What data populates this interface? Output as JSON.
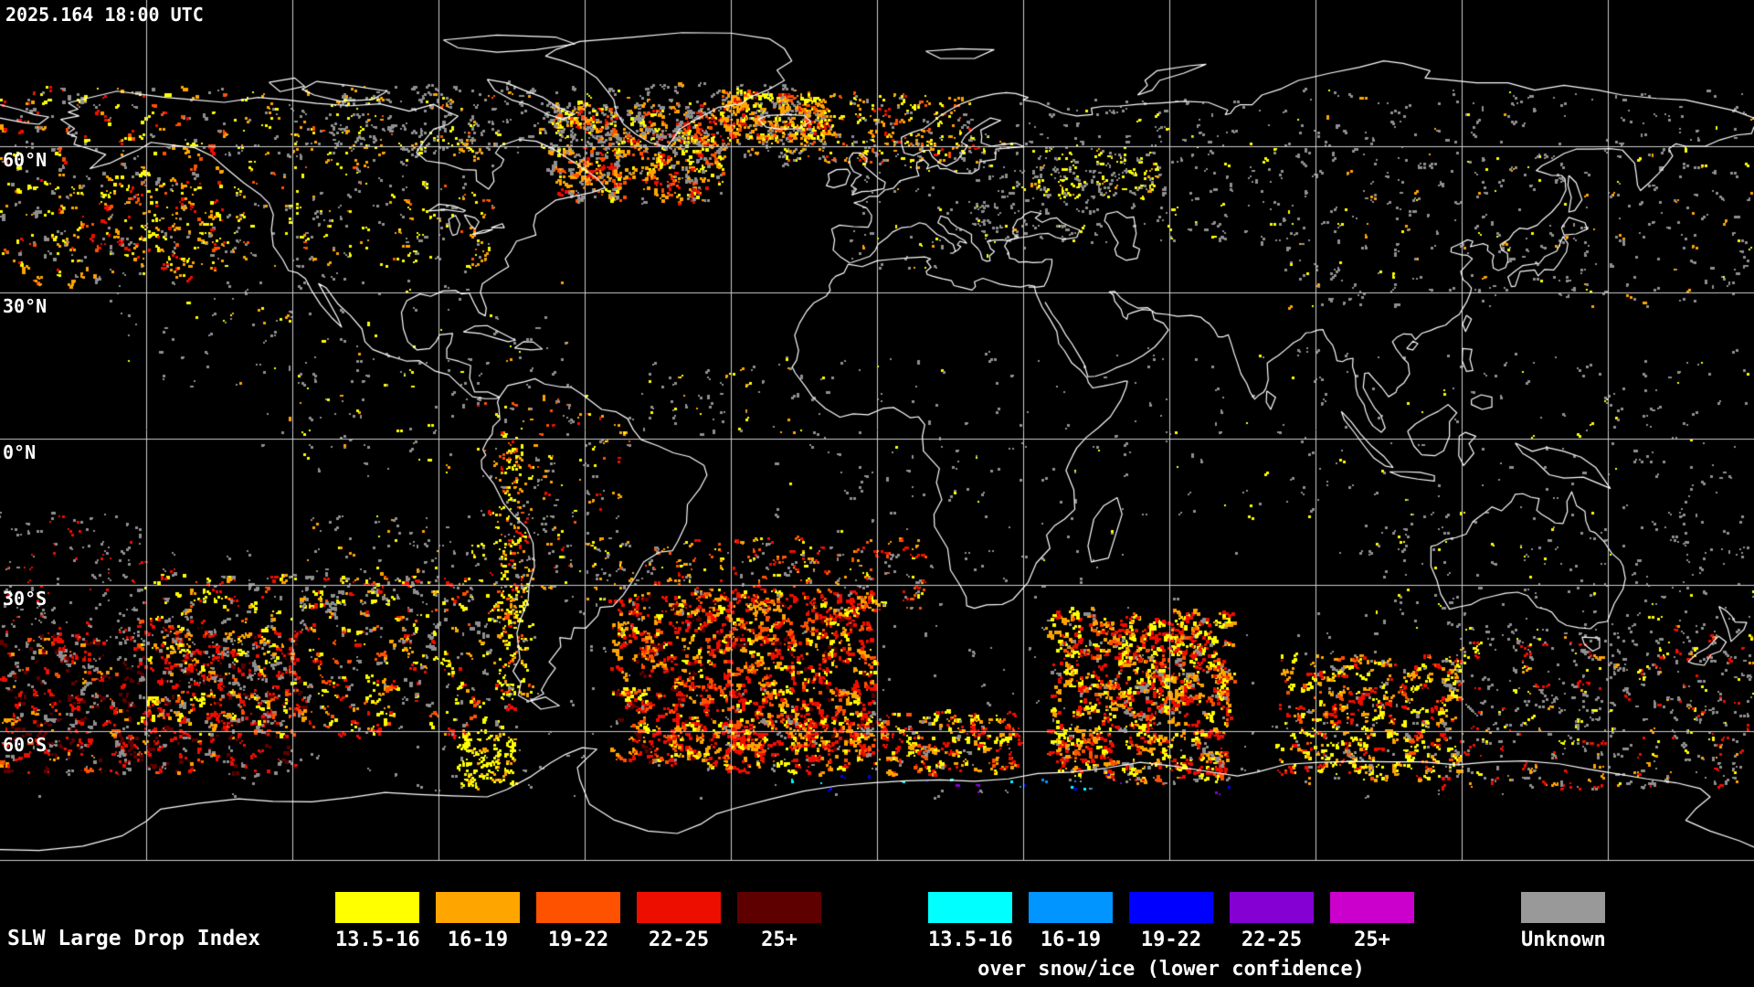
{
  "header": {
    "timestamp": "2025.164 18:00 UTC"
  },
  "map": {
    "latitude_labels": [
      "60°N",
      "30°N",
      "0°N",
      "30°S",
      "60°S"
    ]
  },
  "legend": {
    "title": "SLW Large Drop Index",
    "primary": {
      "items": [
        {
          "label": "13.5-16",
          "color": "#ffff00"
        },
        {
          "label": "16-19",
          "color": "#ffa500"
        },
        {
          "label": "19-22",
          "color": "#ff5200"
        },
        {
          "label": "22-25",
          "color": "#ee0e00"
        },
        {
          "label": "25+",
          "color": "#5e0000"
        }
      ]
    },
    "snow_ice": {
      "caption": "over snow/ice (lower confidence)",
      "items": [
        {
          "label": "13.5-16",
          "color": "#00ffff"
        },
        {
          "label": "16-19",
          "color": "#0095ff"
        },
        {
          "label": "19-22",
          "color": "#0000ff"
        },
        {
          "label": "22-25",
          "color": "#8400d3"
        },
        {
          "label": "25+",
          "color": "#cc00cc"
        }
      ]
    },
    "unknown": {
      "label": "Unknown",
      "color": "#999999"
    }
  },
  "map_colors": {
    "background": "#000000",
    "gridline": "#cccccc",
    "coastline": "#ffffff",
    "unknown_speckle": "#8f8f8f"
  }
}
